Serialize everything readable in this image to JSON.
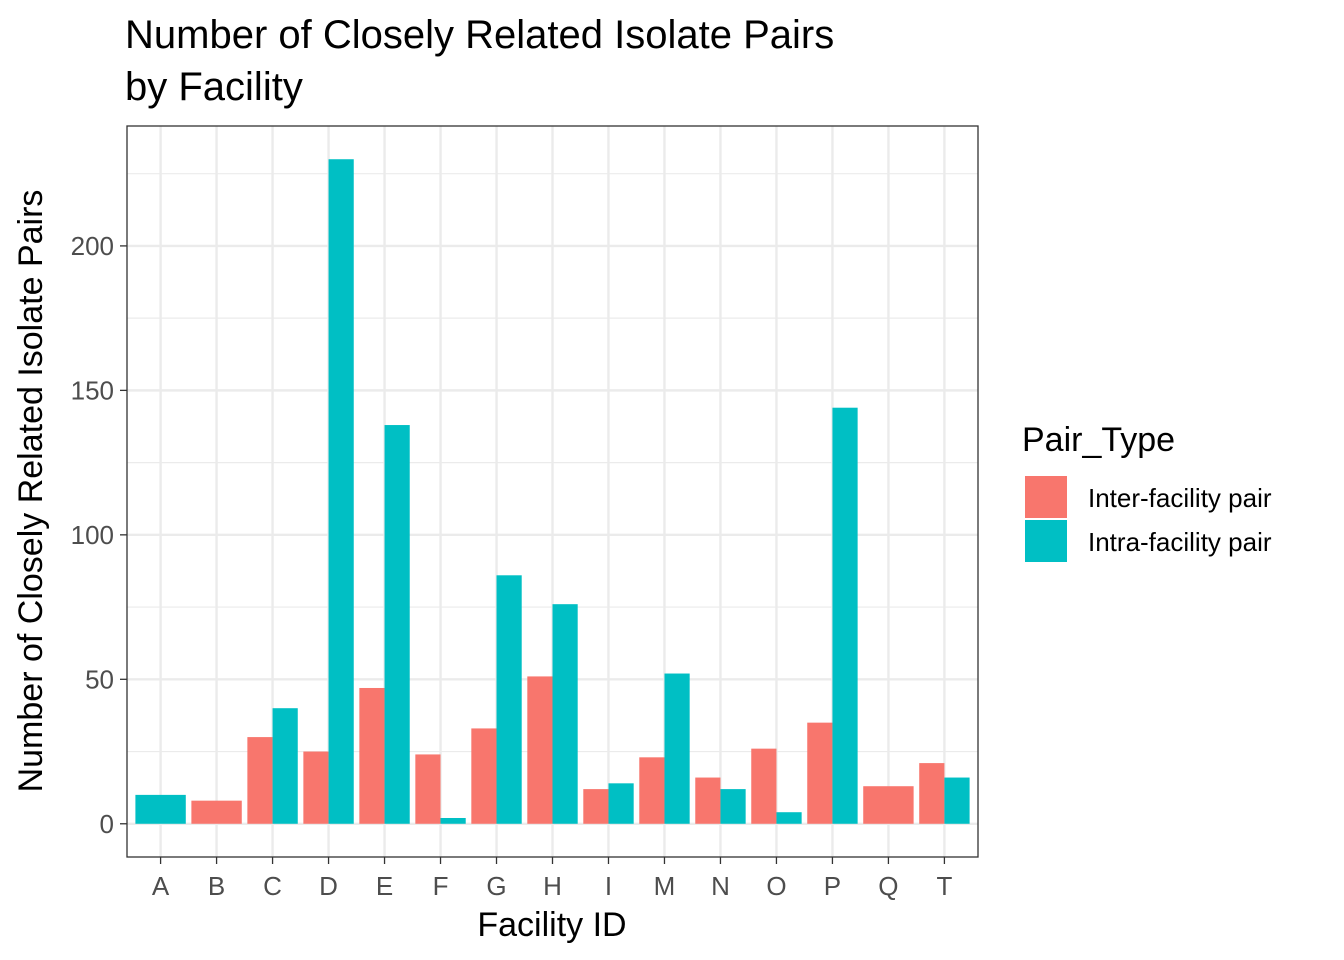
{
  "chart_data": {
    "type": "bar",
    "title_lines": [
      "Number of Closely Related Isolate Pairs",
      "by Facility"
    ],
    "xlabel": "Facility ID",
    "ylabel": "Number of Closely Related Isolate Pairs",
    "categories": [
      "A",
      "B",
      "C",
      "D",
      "E",
      "F",
      "G",
      "H",
      "I",
      "M",
      "N",
      "O",
      "P",
      "Q",
      "T"
    ],
    "series": [
      {
        "name": "Inter-facility pair",
        "color": "#F8766D",
        "values": [
          null,
          8,
          30,
          25,
          47,
          24,
          33,
          51,
          12,
          23,
          16,
          26,
          35,
          13,
          21
        ]
      },
      {
        "name": "Intra-facility pair",
        "color": "#00BFC4",
        "values": [
          10,
          null,
          40,
          230,
          138,
          2,
          86,
          76,
          14,
          52,
          12,
          4,
          144,
          null,
          16
        ]
      }
    ],
    "ylim": [
      -11.5,
      241.5
    ],
    "yticks": [
      0,
      50,
      100,
      150,
      200
    ],
    "grid": true,
    "barmode": "dodge",
    "legend": {
      "title": "Pair_Type",
      "position": "right"
    }
  }
}
